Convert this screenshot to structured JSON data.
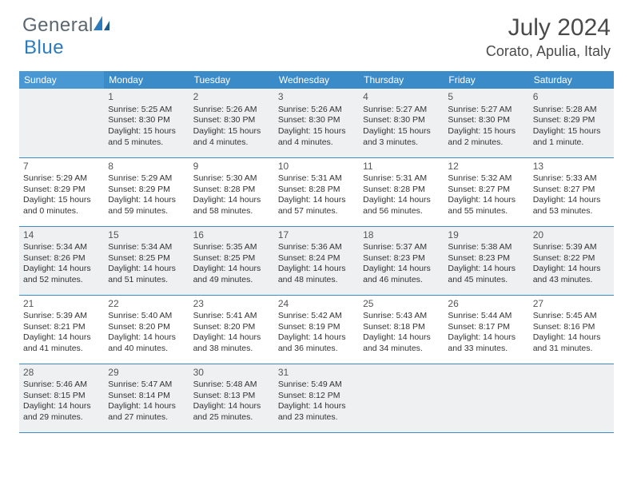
{
  "logo": {
    "text1": "General",
    "text2": "Blue"
  },
  "title": "July 2024",
  "location": "Corato, Apulia, Italy",
  "colors": {
    "header_bg": "#3b8bc9",
    "sunday_hdr": "#4a98d3",
    "shade": "#eef0f2",
    "border": "#3b8bc9",
    "logo_gray": "#5a6670",
    "logo_blue": "#2b7bbd"
  },
  "dow": [
    "Sunday",
    "Monday",
    "Tuesday",
    "Wednesday",
    "Thursday",
    "Friday",
    "Saturday"
  ],
  "weeks": [
    [
      null,
      {
        "n": "1",
        "sr": "5:25 AM",
        "ss": "8:30 PM",
        "d1": "Daylight: 15 hours",
        "d2": "and 5 minutes."
      },
      {
        "n": "2",
        "sr": "5:26 AM",
        "ss": "8:30 PM",
        "d1": "Daylight: 15 hours",
        "d2": "and 4 minutes."
      },
      {
        "n": "3",
        "sr": "5:26 AM",
        "ss": "8:30 PM",
        "d1": "Daylight: 15 hours",
        "d2": "and 4 minutes."
      },
      {
        "n": "4",
        "sr": "5:27 AM",
        "ss": "8:30 PM",
        "d1": "Daylight: 15 hours",
        "d2": "and 3 minutes."
      },
      {
        "n": "5",
        "sr": "5:27 AM",
        "ss": "8:30 PM",
        "d1": "Daylight: 15 hours",
        "d2": "and 2 minutes."
      },
      {
        "n": "6",
        "sr": "5:28 AM",
        "ss": "8:29 PM",
        "d1": "Daylight: 15 hours",
        "d2": "and 1 minute."
      }
    ],
    [
      {
        "n": "7",
        "sr": "5:29 AM",
        "ss": "8:29 PM",
        "d1": "Daylight: 15 hours",
        "d2": "and 0 minutes."
      },
      {
        "n": "8",
        "sr": "5:29 AM",
        "ss": "8:29 PM",
        "d1": "Daylight: 14 hours",
        "d2": "and 59 minutes."
      },
      {
        "n": "9",
        "sr": "5:30 AM",
        "ss": "8:28 PM",
        "d1": "Daylight: 14 hours",
        "d2": "and 58 minutes."
      },
      {
        "n": "10",
        "sr": "5:31 AM",
        "ss": "8:28 PM",
        "d1": "Daylight: 14 hours",
        "d2": "and 57 minutes."
      },
      {
        "n": "11",
        "sr": "5:31 AM",
        "ss": "8:28 PM",
        "d1": "Daylight: 14 hours",
        "d2": "and 56 minutes."
      },
      {
        "n": "12",
        "sr": "5:32 AM",
        "ss": "8:27 PM",
        "d1": "Daylight: 14 hours",
        "d2": "and 55 minutes."
      },
      {
        "n": "13",
        "sr": "5:33 AM",
        "ss": "8:27 PM",
        "d1": "Daylight: 14 hours",
        "d2": "and 53 minutes."
      }
    ],
    [
      {
        "n": "14",
        "sr": "5:34 AM",
        "ss": "8:26 PM",
        "d1": "Daylight: 14 hours",
        "d2": "and 52 minutes."
      },
      {
        "n": "15",
        "sr": "5:34 AM",
        "ss": "8:25 PM",
        "d1": "Daylight: 14 hours",
        "d2": "and 51 minutes."
      },
      {
        "n": "16",
        "sr": "5:35 AM",
        "ss": "8:25 PM",
        "d1": "Daylight: 14 hours",
        "d2": "and 49 minutes."
      },
      {
        "n": "17",
        "sr": "5:36 AM",
        "ss": "8:24 PM",
        "d1": "Daylight: 14 hours",
        "d2": "and 48 minutes."
      },
      {
        "n": "18",
        "sr": "5:37 AM",
        "ss": "8:23 PM",
        "d1": "Daylight: 14 hours",
        "d2": "and 46 minutes."
      },
      {
        "n": "19",
        "sr": "5:38 AM",
        "ss": "8:23 PM",
        "d1": "Daylight: 14 hours",
        "d2": "and 45 minutes."
      },
      {
        "n": "20",
        "sr": "5:39 AM",
        "ss": "8:22 PM",
        "d1": "Daylight: 14 hours",
        "d2": "and 43 minutes."
      }
    ],
    [
      {
        "n": "21",
        "sr": "5:39 AM",
        "ss": "8:21 PM",
        "d1": "Daylight: 14 hours",
        "d2": "and 41 minutes."
      },
      {
        "n": "22",
        "sr": "5:40 AM",
        "ss": "8:20 PM",
        "d1": "Daylight: 14 hours",
        "d2": "and 40 minutes."
      },
      {
        "n": "23",
        "sr": "5:41 AM",
        "ss": "8:20 PM",
        "d1": "Daylight: 14 hours",
        "d2": "and 38 minutes."
      },
      {
        "n": "24",
        "sr": "5:42 AM",
        "ss": "8:19 PM",
        "d1": "Daylight: 14 hours",
        "d2": "and 36 minutes."
      },
      {
        "n": "25",
        "sr": "5:43 AM",
        "ss": "8:18 PM",
        "d1": "Daylight: 14 hours",
        "d2": "and 34 minutes."
      },
      {
        "n": "26",
        "sr": "5:44 AM",
        "ss": "8:17 PM",
        "d1": "Daylight: 14 hours",
        "d2": "and 33 minutes."
      },
      {
        "n": "27",
        "sr": "5:45 AM",
        "ss": "8:16 PM",
        "d1": "Daylight: 14 hours",
        "d2": "and 31 minutes."
      }
    ],
    [
      {
        "n": "28",
        "sr": "5:46 AM",
        "ss": "8:15 PM",
        "d1": "Daylight: 14 hours",
        "d2": "and 29 minutes."
      },
      {
        "n": "29",
        "sr": "5:47 AM",
        "ss": "8:14 PM",
        "d1": "Daylight: 14 hours",
        "d2": "and 27 minutes."
      },
      {
        "n": "30",
        "sr": "5:48 AM",
        "ss": "8:13 PM",
        "d1": "Daylight: 14 hours",
        "d2": "and 25 minutes."
      },
      {
        "n": "31",
        "sr": "5:49 AM",
        "ss": "8:12 PM",
        "d1": "Daylight: 14 hours",
        "d2": "and 23 minutes."
      },
      null,
      null,
      null
    ]
  ]
}
